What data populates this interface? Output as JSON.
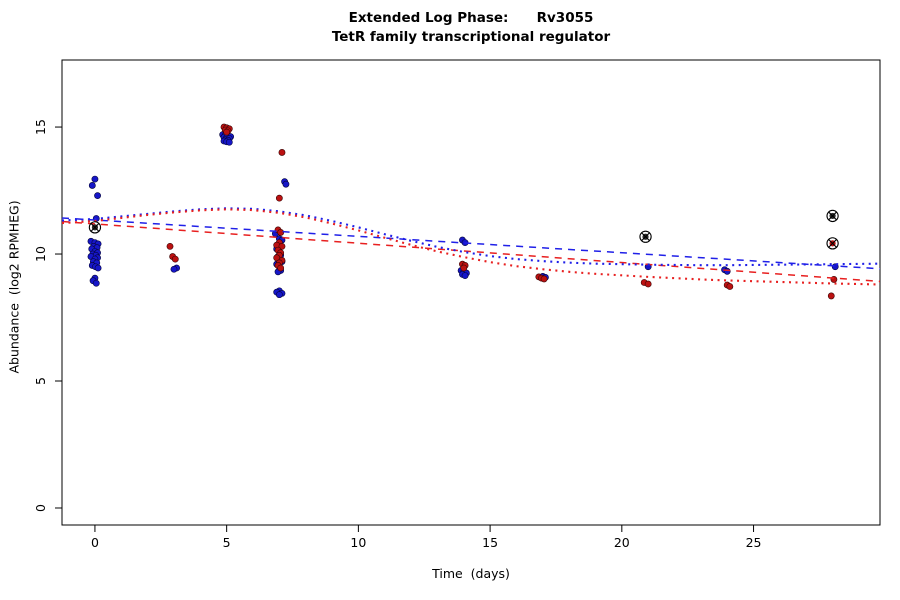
{
  "chart_data": {
    "type": "scatter",
    "title": "Extended Log Phase:      Rv3055",
    "subtitle": "TetR family transcriptional regulator",
    "xlabel": "Time  (days)",
    "ylabel": "Abundance  (log2 RPMHEG)",
    "xlim": [
      -1.25,
      29.8
    ],
    "ylim": [
      -0.67,
      17.64
    ],
    "xticks": [
      0,
      5,
      10,
      15,
      20,
      25
    ],
    "yticks": [
      0,
      5,
      10,
      15
    ],
    "grid": false,
    "legend": "none",
    "colors": {
      "point_blue": "#1616c8",
      "point_blue_stroke": "#05053c",
      "point_red": "#bb1111",
      "point_red_stroke": "#3c0505",
      "line_blue": "#2020e8",
      "line_red": "#e82020",
      "outlier_stroke": "#000000"
    },
    "series": [
      {
        "name": "condition-blue-points",
        "color": "#1616c8",
        "stroke": "#05053c",
        "points": [
          [
            0,
            12.95
          ],
          [
            -0.1,
            12.7
          ],
          [
            0.1,
            12.3
          ],
          [
            0.05,
            11.4
          ],
          [
            -0.15,
            10.5
          ],
          [
            0,
            10.45
          ],
          [
            0.12,
            10.4
          ],
          [
            -0.05,
            10.3
          ],
          [
            0.08,
            10.25
          ],
          [
            -0.12,
            10.2
          ],
          [
            0,
            10.1
          ],
          [
            0.1,
            10.05
          ],
          [
            -0.08,
            10.0
          ],
          [
            0.03,
            9.95
          ],
          [
            -0.15,
            9.9
          ],
          [
            0.1,
            9.85
          ],
          [
            0,
            9.8
          ],
          [
            -0.06,
            9.7
          ],
          [
            0.07,
            9.65
          ],
          [
            -0.1,
            9.55
          ],
          [
            0.02,
            9.5
          ],
          [
            0.12,
            9.45
          ],
          [
            0,
            9.05
          ],
          [
            -0.07,
            8.95
          ],
          [
            0.05,
            8.85
          ],
          [
            3.1,
            9.45
          ],
          [
            3.0,
            9.4
          ],
          [
            4.85,
            14.7
          ],
          [
            4.95,
            14.68
          ],
          [
            5.05,
            14.65
          ],
          [
            5.15,
            14.62
          ],
          [
            4.9,
            14.6
          ],
          [
            5.0,
            14.58
          ],
          [
            5.1,
            14.55
          ],
          [
            4.95,
            14.5
          ],
          [
            5.05,
            14.48
          ],
          [
            4.9,
            14.45
          ],
          [
            5.0,
            14.42
          ],
          [
            5.1,
            14.4
          ],
          [
            7.2,
            12.85
          ],
          [
            7.25,
            12.75
          ],
          [
            6.85,
            10.8
          ],
          [
            7.0,
            10.6
          ],
          [
            7.1,
            10.55
          ],
          [
            6.9,
            10.2
          ],
          [
            7.0,
            10.1
          ],
          [
            7.05,
            9.95
          ],
          [
            6.95,
            9.9
          ],
          [
            7.1,
            9.7
          ],
          [
            6.9,
            9.6
          ],
          [
            7.0,
            9.5
          ],
          [
            7.05,
            9.35
          ],
          [
            6.95,
            9.3
          ],
          [
            7.0,
            8.55
          ],
          [
            6.9,
            8.5
          ],
          [
            7.1,
            8.45
          ],
          [
            7.0,
            8.4
          ],
          [
            13.95,
            10.55
          ],
          [
            14.05,
            10.45
          ],
          [
            13.9,
            9.35
          ],
          [
            14.0,
            9.3
          ],
          [
            14.1,
            9.25
          ],
          [
            13.95,
            9.2
          ],
          [
            14.05,
            9.15
          ],
          [
            17.0,
            9.12
          ],
          [
            17.1,
            9.08
          ],
          [
            21.0,
            9.5
          ],
          [
            23.9,
            9.38
          ],
          [
            24.0,
            9.32
          ],
          [
            28.1,
            9.5
          ]
        ]
      },
      {
        "name": "condition-red-points",
        "color": "#bb1111",
        "stroke": "#3c0505",
        "points": [
          [
            2.85,
            10.3
          ],
          [
            2.95,
            9.9
          ],
          [
            3.05,
            9.8
          ],
          [
            4.9,
            15.0
          ],
          [
            5.0,
            14.97
          ],
          [
            5.1,
            14.93
          ],
          [
            4.95,
            14.88
          ],
          [
            5.05,
            14.85
          ],
          [
            5.0,
            14.8
          ],
          [
            7.1,
            14.0
          ],
          [
            7.0,
            12.2
          ],
          [
            6.95,
            10.95
          ],
          [
            7.05,
            10.85
          ],
          [
            7.0,
            10.45
          ],
          [
            6.9,
            10.35
          ],
          [
            7.1,
            10.3
          ],
          [
            6.95,
            10.15
          ],
          [
            7.05,
            10.05
          ],
          [
            7.0,
            9.95
          ],
          [
            6.9,
            9.85
          ],
          [
            7.1,
            9.75
          ],
          [
            7.0,
            9.65
          ],
          [
            6.95,
            9.55
          ],
          [
            7.05,
            9.45
          ],
          [
            13.95,
            9.6
          ],
          [
            14.05,
            9.55
          ],
          [
            14.0,
            9.45
          ],
          [
            16.85,
            9.1
          ],
          [
            16.95,
            9.05
          ],
          [
            17.05,
            9.02
          ],
          [
            20.85,
            8.88
          ],
          [
            21.0,
            8.82
          ],
          [
            24.0,
            8.78
          ],
          [
            24.1,
            8.72
          ],
          [
            28.05,
            9.0
          ],
          [
            27.95,
            8.35
          ]
        ]
      }
    ],
    "outliers": [
      {
        "x": 0.0,
        "y": 11.05,
        "dot": "#2a2a2a"
      },
      {
        "x": 20.9,
        "y": 10.68,
        "dot": "#2a2a2a"
      },
      {
        "x": 28.0,
        "y": 11.5,
        "dot": "#2a2a2a"
      },
      {
        "x": 28.0,
        "y": 10.42,
        "dot": "#bb1111"
      }
    ],
    "lines": [
      {
        "name": "blue-linear-fit-dashed",
        "color": "#2020e8",
        "dash": "7,6",
        "width": 1.5,
        "points": [
          [
            -1.25,
            11.42
          ],
          [
            29.8,
            9.42
          ]
        ]
      },
      {
        "name": "red-linear-fit-dashed",
        "color": "#e82020",
        "dash": "7,6",
        "width": 1.5,
        "points": [
          [
            -1.25,
            11.28
          ],
          [
            29.8,
            8.92
          ]
        ]
      },
      {
        "name": "blue-smooth-fit-dotted",
        "color": "#2020e8",
        "dash": "2,4.5",
        "width": 2.1,
        "points": [
          [
            -1.25,
            11.32
          ],
          [
            0,
            11.38
          ],
          [
            1,
            11.48
          ],
          [
            2,
            11.58
          ],
          [
            3,
            11.68
          ],
          [
            4,
            11.76
          ],
          [
            5,
            11.8
          ],
          [
            6,
            11.78
          ],
          [
            7,
            11.68
          ],
          [
            8,
            11.52
          ],
          [
            9,
            11.3
          ],
          [
            10,
            11.05
          ],
          [
            11,
            10.78
          ],
          [
            12,
            10.52
          ],
          [
            13,
            10.28
          ],
          [
            14,
            10.08
          ],
          [
            15,
            9.92
          ],
          [
            16,
            9.8
          ],
          [
            17,
            9.72
          ],
          [
            18,
            9.66
          ],
          [
            19,
            9.62
          ],
          [
            20,
            9.6
          ],
          [
            21,
            9.58
          ],
          [
            22,
            9.57
          ],
          [
            23,
            9.56
          ],
          [
            24,
            9.56
          ],
          [
            25,
            9.57
          ],
          [
            26,
            9.58
          ],
          [
            27,
            9.59
          ],
          [
            28,
            9.6
          ],
          [
            29.8,
            9.62
          ]
        ]
      },
      {
        "name": "red-smooth-fit-dotted",
        "color": "#e82020",
        "dash": "2,4.5",
        "width": 2.1,
        "points": [
          [
            -1.25,
            11.22
          ],
          [
            0,
            11.3
          ],
          [
            1,
            11.42
          ],
          [
            2,
            11.54
          ],
          [
            3,
            11.64
          ],
          [
            4,
            11.72
          ],
          [
            5,
            11.76
          ],
          [
            6,
            11.73
          ],
          [
            7,
            11.62
          ],
          [
            8,
            11.44
          ],
          [
            9,
            11.2
          ],
          [
            10,
            10.93
          ],
          [
            11,
            10.64
          ],
          [
            12,
            10.36
          ],
          [
            13,
            10.1
          ],
          [
            14,
            9.88
          ],
          [
            15,
            9.68
          ],
          [
            16,
            9.52
          ],
          [
            17,
            9.4
          ],
          [
            18,
            9.3
          ],
          [
            19,
            9.22
          ],
          [
            20,
            9.16
          ],
          [
            21,
            9.1
          ],
          [
            22,
            9.05
          ],
          [
            23,
            9.0
          ],
          [
            24,
            8.96
          ],
          [
            25,
            8.93
          ],
          [
            26,
            8.9
          ],
          [
            27,
            8.87
          ],
          [
            28,
            8.84
          ],
          [
            29.8,
            8.8
          ]
        ]
      }
    ]
  }
}
